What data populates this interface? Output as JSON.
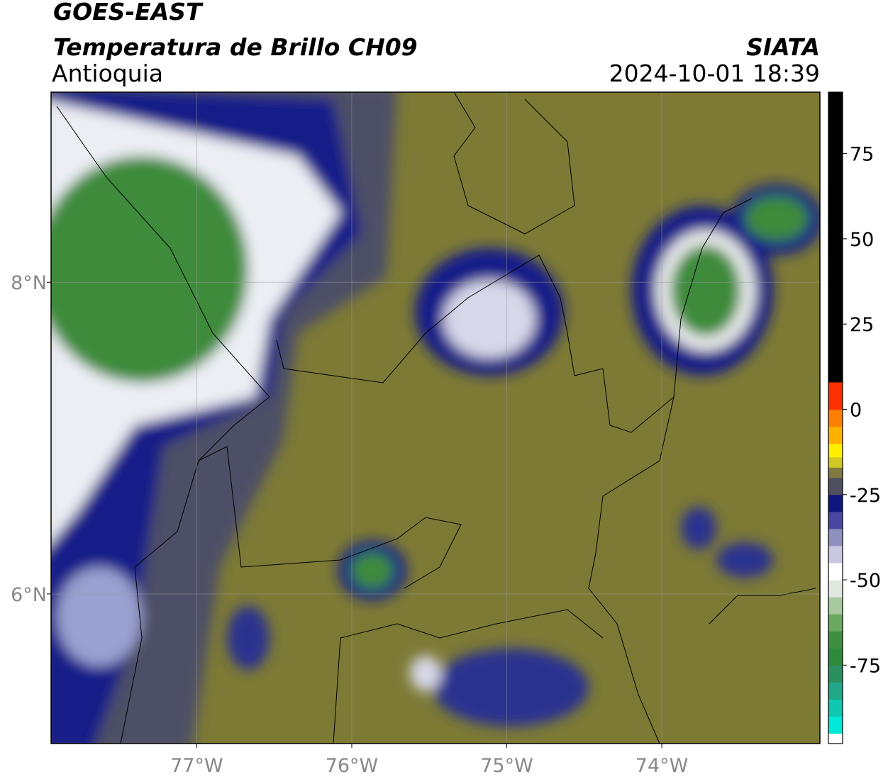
{
  "header": {
    "title": "GOES-EAST",
    "subtitle": "Temperatura de Brillo CH09",
    "region": "Antioquia",
    "source": "SIATA",
    "datetime": "2024-10-01 18:39"
  },
  "map": {
    "xlim": [
      -77.94,
      -72.98
    ],
    "ylim": [
      5.04,
      9.22
    ],
    "xticks": [
      {
        "value": -77,
        "label": "77°W"
      },
      {
        "value": -76,
        "label": "76°W"
      },
      {
        "value": -75,
        "label": "75°W"
      },
      {
        "value": -74,
        "label": "74°W"
      }
    ],
    "yticks": [
      {
        "value": 6,
        "label": "6°N"
      },
      {
        "value": 8,
        "label": "8°N"
      }
    ],
    "grid": true
  },
  "colorbar": {
    "lim": [
      -98,
      93
    ],
    "ticks": [
      -75,
      -50,
      -25,
      0,
      25,
      50,
      75
    ],
    "bands": [
      {
        "from": -98,
        "to": -95,
        "color": "#ffffff"
      },
      {
        "from": -95,
        "to": -90,
        "color": "#00e8d8"
      },
      {
        "from": -90,
        "to": -85,
        "color": "#10c8b0"
      },
      {
        "from": -85,
        "to": -80,
        "color": "#20a888"
      },
      {
        "from": -80,
        "to": -75,
        "color": "#2a9060"
      },
      {
        "from": -75,
        "to": -70,
        "color": "#2e8a3a"
      },
      {
        "from": -70,
        "to": -65,
        "color": "#3e9040"
      },
      {
        "from": -65,
        "to": -60,
        "color": "#6aa860"
      },
      {
        "from": -60,
        "to": -55,
        "color": "#a8c8a0"
      },
      {
        "from": -55,
        "to": -50,
        "color": "#e0e8e0"
      },
      {
        "from": -50,
        "to": -45,
        "color": "#ffffff"
      },
      {
        "from": -45,
        "to": -40,
        "color": "#c8c8e0"
      },
      {
        "from": -40,
        "to": -35,
        "color": "#9090c0"
      },
      {
        "from": -35,
        "to": -30,
        "color": "#4848a0"
      },
      {
        "from": -30,
        "to": -25,
        "color": "#101880"
      },
      {
        "from": -25,
        "to": -20,
        "color": "#505060"
      },
      {
        "from": -20,
        "to": -17,
        "color": "#807a40"
      },
      {
        "from": -17,
        "to": -14,
        "color": "#d0c820"
      },
      {
        "from": -14,
        "to": -10,
        "color": "#ffee00"
      },
      {
        "from": -10,
        "to": -5,
        "color": "#ffb000"
      },
      {
        "from": -5,
        "to": 0,
        "color": "#ff8000"
      },
      {
        "from": 0,
        "to": 8,
        "color": "#ff3000"
      },
      {
        "from": 8,
        "to": 93,
        "color": "#000000"
      }
    ]
  }
}
